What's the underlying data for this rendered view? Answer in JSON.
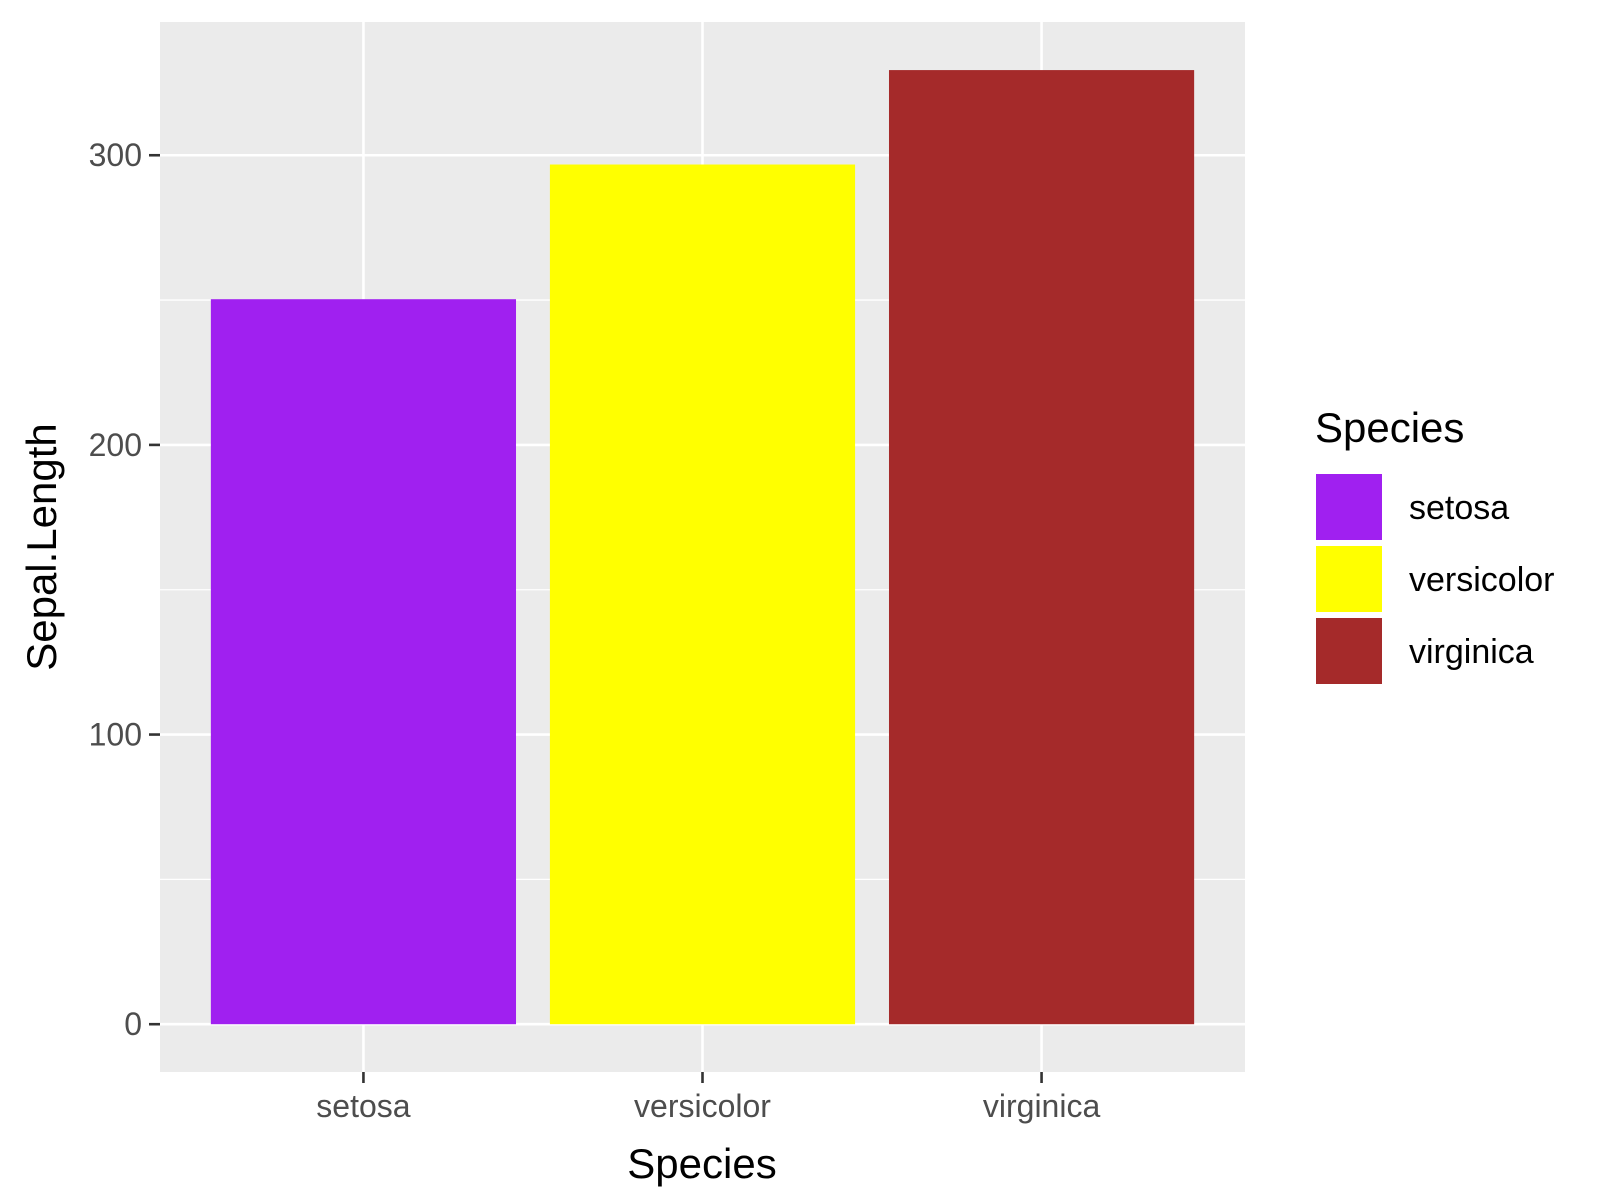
{
  "chart_data": {
    "type": "bar",
    "categories": [
      "setosa",
      "versicolor",
      "virginica"
    ],
    "values": [
      250.3,
      296.8,
      329.4
    ],
    "colors": [
      "#a020f0",
      "#ffff00",
      "#a52a2a"
    ],
    "xlabel": "Species",
    "ylabel": "Sepal.Length",
    "ylim": [
      -16.5,
      346.0
    ],
    "yticks": [
      0,
      100,
      200,
      300
    ],
    "ytick_labels": [
      "0",
      "100",
      "200",
      "300"
    ],
    "grid": true,
    "panel_background": "#ebebeb",
    "legend": {
      "title": "Species",
      "position": "right",
      "entries": [
        "setosa",
        "versicolor",
        "virginica"
      ]
    }
  }
}
